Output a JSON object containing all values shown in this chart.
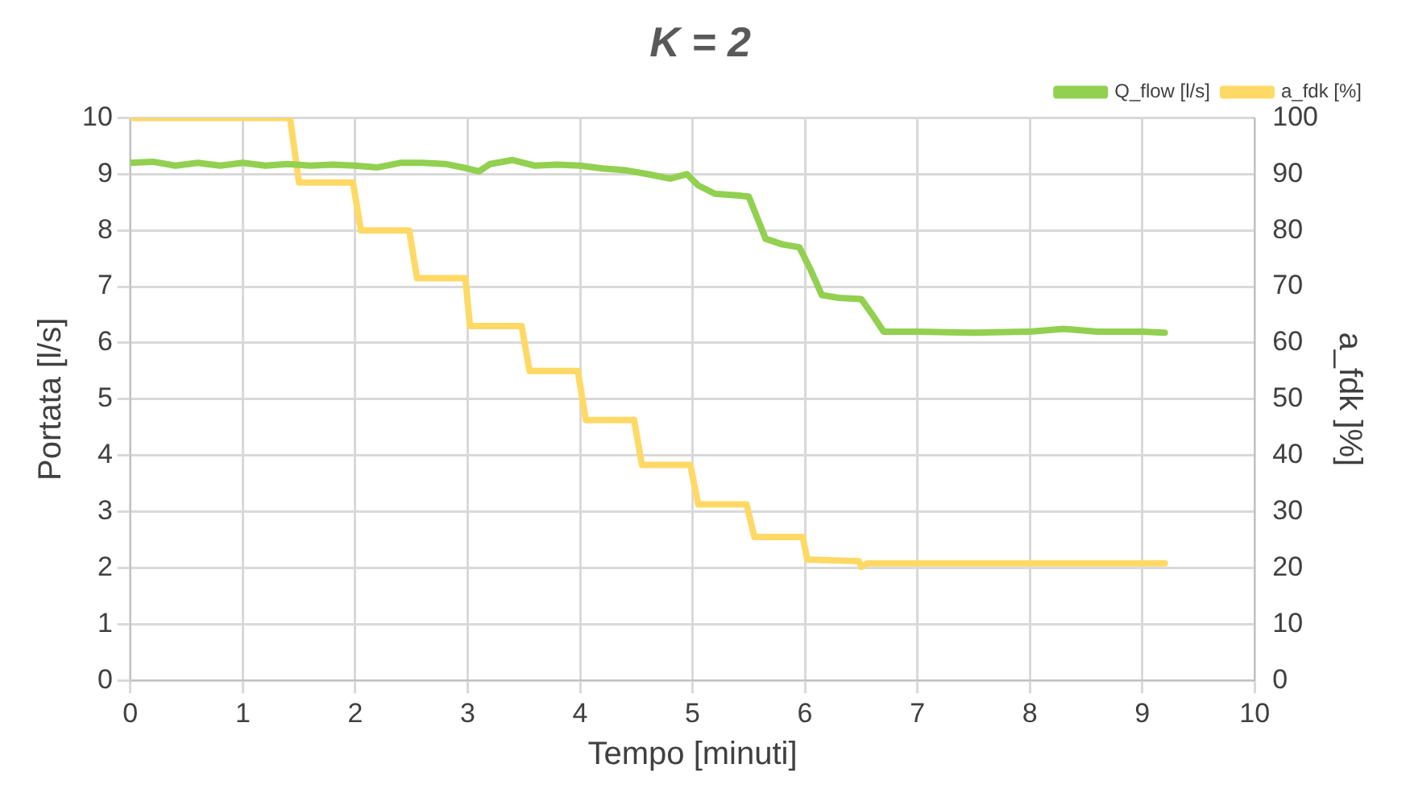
{
  "chart_data": {
    "type": "line",
    "title": "K = 2",
    "xlabel": "Tempo [minuti]",
    "ylabel": "Portata [l/s]",
    "y2label": "a_fdk ]%]",
    "xlim": [
      0,
      10
    ],
    "xticks": [
      0,
      1,
      2,
      3,
      4,
      5,
      6,
      7,
      8,
      9,
      10
    ],
    "ylim": [
      0,
      10
    ],
    "yticks": [
      0,
      1,
      2,
      3,
      4,
      5,
      6,
      7,
      8,
      9,
      10
    ],
    "y2lim": [
      0,
      100
    ],
    "y2ticks": [
      0,
      10,
      20,
      30,
      40,
      50,
      60,
      70,
      80,
      90,
      100
    ],
    "grid": true,
    "legend": "top right",
    "marker": "none",
    "line_style": "solid",
    "series": [
      {
        "name": "Q_flow [l/s]",
        "color": "#92d050",
        "x": [
          0,
          0.2,
          0.4,
          0.6,
          0.8,
          1.0,
          1.2,
          1.4,
          1.6,
          1.8,
          2.0,
          2.2,
          2.4,
          2.6,
          2.8,
          3.0,
          3.1,
          3.2,
          3.4,
          3.6,
          3.8,
          4.0,
          4.2,
          4.4,
          4.6,
          4.8,
          4.95,
          5.05,
          5.2,
          5.4,
          5.5,
          5.65,
          5.8,
          5.95,
          6.05,
          6.15,
          6.3,
          6.5,
          6.6,
          6.7,
          7.0,
          7.5,
          8.0,
          8.3,
          8.6,
          9.0,
          9.2
        ],
        "values": [
          9.2,
          9.22,
          9.15,
          9.2,
          9.15,
          9.2,
          9.15,
          9.18,
          9.15,
          9.17,
          9.15,
          9.12,
          9.2,
          9.2,
          9.18,
          9.1,
          9.05,
          9.18,
          9.25,
          9.15,
          9.17,
          9.15,
          9.1,
          9.07,
          9.0,
          8.92,
          9.0,
          8.8,
          8.65,
          8.62,
          8.6,
          7.85,
          7.75,
          7.7,
          7.3,
          6.85,
          6.8,
          6.78,
          6.5,
          6.2,
          6.2,
          6.18,
          6.2,
          6.25,
          6.2,
          6.2,
          6.18
        ]
      },
      {
        "name": "a_fdk [%]",
        "color": "#ffd966",
        "axis": "y2",
        "x": [
          0,
          1.42,
          1.5,
          1.98,
          2.05,
          2.48,
          2.55,
          2.98,
          3.02,
          3.48,
          3.55,
          3.98,
          4.05,
          4.48,
          4.55,
          4.98,
          5.05,
          5.48,
          5.55,
          5.98,
          6.02,
          6.48,
          6.5,
          6.55,
          7.5,
          9.2
        ],
        "values": [
          100,
          100,
          88.5,
          88.5,
          80,
          80,
          71.5,
          71.5,
          63,
          63,
          55,
          55,
          46.3,
          46.3,
          38.3,
          38.3,
          31.3,
          31.3,
          25.5,
          25.5,
          21.5,
          21.2,
          20.2,
          20.8,
          20.8,
          20.8
        ]
      }
    ]
  }
}
